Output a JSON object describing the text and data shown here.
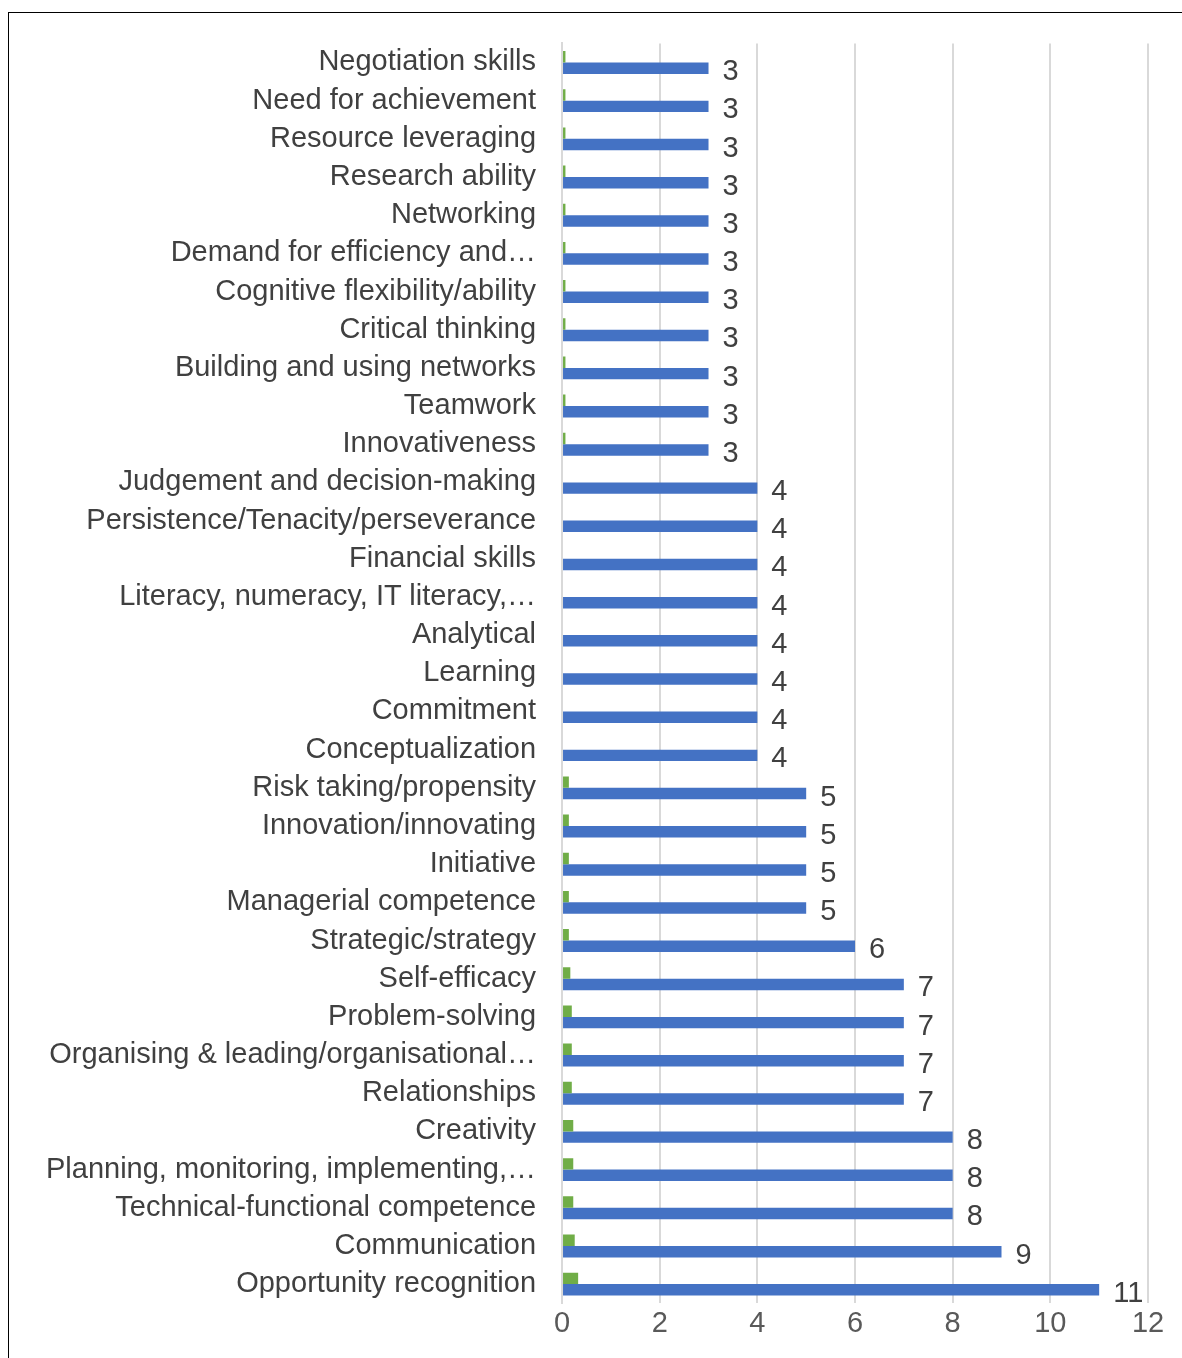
{
  "chart_data": {
    "type": "bar",
    "orientation": "horizontal",
    "categories": [
      "Negotiation skills",
      "Need for achievement",
      "Resource leveraging",
      "Research ability",
      "Networking",
      "Demand for efficiency and…",
      "Cognitive flexibility/ability",
      "Critical thinking",
      "Building and using networks",
      "Teamwork",
      "Innovativeness",
      "Judgement and decision-making",
      "Persistence/Tenacity/perseverance",
      "Financial skills",
      "Literacy, numeracy, IT literacy,…",
      "Analytical",
      "Learning",
      "Commitment",
      "Conceptualization",
      "Risk taking/propensity",
      "Innovation/innovating",
      "Initiative",
      "Managerial competence",
      "Strategic/strategy",
      "Self-efficacy",
      "Problem-solving",
      "Organising & leading/organisational…",
      "Relationships",
      "Creativity",
      "Planning, monitoring, implementing,…",
      "Technical-functional competence",
      "Communication",
      "Opportunity recognition"
    ],
    "series": [
      {
        "color": "#70ad47",
        "values": [
          0.07,
          0.07,
          0.07,
          0.07,
          0.07,
          0.07,
          0.07,
          0.07,
          0.07,
          0.07,
          0.07,
          0,
          0,
          0,
          0,
          0,
          0,
          0,
          0,
          0.14,
          0.14,
          0.14,
          0.14,
          0.14,
          0.17,
          0.2,
          0.2,
          0.2,
          0.23,
          0.23,
          0.23,
          0.26,
          0.33
        ]
      },
      {
        "color": "#4472c4",
        "values": [
          3,
          3,
          3,
          3,
          3,
          3,
          3,
          3,
          3,
          3,
          3,
          4,
          4,
          4,
          4,
          4,
          4,
          4,
          4,
          5,
          5,
          5,
          5,
          6,
          7,
          7,
          7,
          7,
          8,
          8,
          8,
          9,
          11
        ],
        "value_labels": [
          "3",
          "3",
          "3",
          "3",
          "3",
          "3",
          "3",
          "3",
          "3",
          "3",
          "3",
          "4",
          "4",
          "4",
          "4",
          "4",
          "4",
          "4",
          "4",
          "5",
          "5",
          "5",
          "5",
          "6",
          "7",
          "7",
          "7",
          "7",
          "8",
          "8",
          "8",
          "9",
          "11"
        ]
      }
    ],
    "xlim": [
      0,
      12
    ],
    "xticks": [
      0,
      2,
      4,
      6,
      8,
      10,
      12
    ],
    "grid": "x",
    "legend": false
  }
}
